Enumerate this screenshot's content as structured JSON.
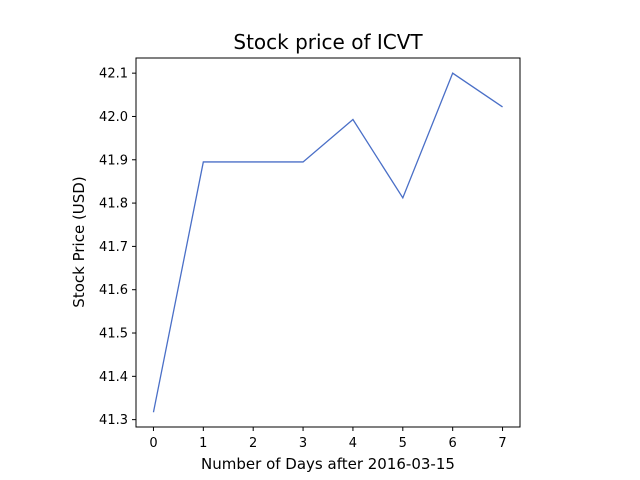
{
  "chart_data": {
    "type": "line",
    "title": "Stock price of ICVT",
    "xlabel": "Number of Days after 2016-03-15",
    "ylabel": "Stock Price (USD)",
    "x": [
      0,
      1,
      2,
      3,
      4,
      5,
      6,
      7
    ],
    "series": [
      {
        "values": [
          41.317,
          41.895,
          41.895,
          41.895,
          41.993,
          41.812,
          42.1,
          42.022
        ],
        "color": "#4a6fc7"
      }
    ],
    "xlim": [
      -0.35,
      7.35
    ],
    "ylim": [
      41.283,
      42.135
    ],
    "x_ticks": [
      0,
      1,
      2,
      3,
      4,
      5,
      6,
      7
    ],
    "x_tick_labels": [
      "0",
      "1",
      "2",
      "3",
      "4",
      "5",
      "6",
      "7"
    ],
    "y_ticks": [
      41.3,
      41.4,
      41.5,
      41.6,
      41.7,
      41.8,
      41.9,
      42.0,
      42.1
    ],
    "y_tick_labels": [
      "41.3",
      "41.4",
      "41.5",
      "41.6",
      "41.7",
      "41.8",
      "41.9",
      "42.0",
      "42.1"
    ],
    "grid": false,
    "legend": "none"
  }
}
